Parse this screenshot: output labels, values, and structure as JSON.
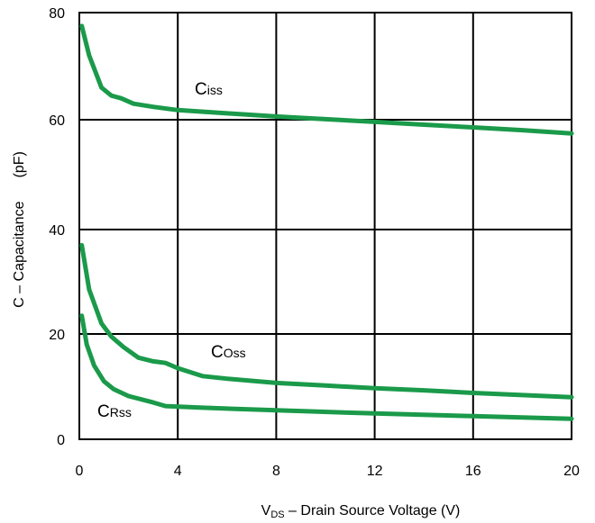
{
  "chart_data": {
    "type": "line",
    "xlabel": {
      "main": "V",
      "sub": "DS",
      "rest": " – Drain Source Voltage (V)"
    },
    "ylabel": {
      "main": "C – Capacitance",
      "unit": "(pF)"
    },
    "xlim": [
      0,
      20
    ],
    "ylim": [
      0,
      80
    ],
    "x_ticks": [
      "0",
      "4",
      "8",
      "12",
      "16",
      "20"
    ],
    "y_ticks": [
      "0",
      "20",
      "40",
      "60",
      "80"
    ],
    "grid": true,
    "line_color": "#1a9a4a",
    "series": [
      {
        "name": "Ciss",
        "label": {
          "main": "C",
          "sub": "iss"
        },
        "points": [
          [
            0.1,
            77.5
          ],
          [
            0.4,
            72
          ],
          [
            0.9,
            66
          ],
          [
            1.3,
            64.5
          ],
          [
            1.7,
            64
          ],
          [
            2.2,
            63
          ],
          [
            3,
            62.4
          ],
          [
            4,
            61.8
          ],
          [
            6,
            61.2
          ],
          [
            8,
            60.6
          ],
          [
            10,
            60.1
          ],
          [
            12,
            59.6
          ],
          [
            14,
            59.1
          ],
          [
            16,
            58.6
          ],
          [
            18,
            58.1
          ],
          [
            20,
            57.5
          ]
        ]
      },
      {
        "name": "Coss",
        "label": {
          "main": "C",
          "sub": "Oss"
        },
        "points": [
          [
            0.1,
            37
          ],
          [
            0.4,
            28.5
          ],
          [
            0.9,
            22
          ],
          [
            1.3,
            19.5
          ],
          [
            1.8,
            17.5
          ],
          [
            2.4,
            15.5
          ],
          [
            3,
            14.8
          ],
          [
            3.5,
            14.5
          ],
          [
            4,
            13.5
          ],
          [
            5,
            12
          ],
          [
            6,
            11.5
          ],
          [
            8,
            10.7
          ],
          [
            10,
            10.2
          ],
          [
            12,
            9.7
          ],
          [
            14,
            9.3
          ],
          [
            16,
            8.8
          ],
          [
            18,
            8.4
          ],
          [
            20,
            8
          ]
        ]
      },
      {
        "name": "Crss",
        "label": {
          "main": "C",
          "sub": "Rss"
        },
        "points": [
          [
            0.1,
            23.5
          ],
          [
            0.3,
            18
          ],
          [
            0.6,
            14
          ],
          [
            1,
            11
          ],
          [
            1.4,
            9.5
          ],
          [
            2,
            8.2
          ],
          [
            3,
            7
          ],
          [
            3.5,
            6.3
          ],
          [
            5,
            6
          ],
          [
            8,
            5.5
          ],
          [
            12,
            4.9
          ],
          [
            16,
            4.4
          ],
          [
            20,
            3.9
          ]
        ]
      }
    ]
  }
}
